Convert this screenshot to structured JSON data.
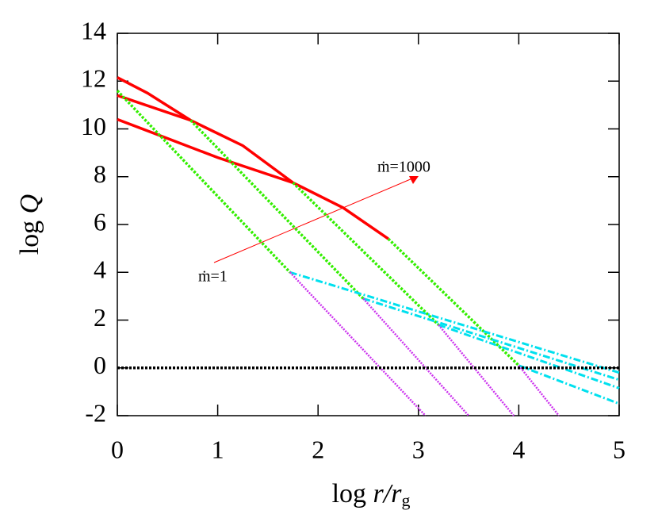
{
  "chart_data": {
    "type": "line",
    "x_label": [
      "log ",
      "r/r",
      "g"
    ],
    "y_label": [
      "log ",
      "Q"
    ],
    "annotations": [
      "ṁ=1",
      "ṁ=1000"
    ],
    "xlim": [
      0,
      5
    ],
    "ylim": [
      -2,
      14
    ],
    "xticks": [
      0,
      1,
      2,
      3,
      4,
      5
    ],
    "yticks": [
      -2,
      0,
      2,
      4,
      6,
      8,
      10,
      12,
      14
    ],
    "series": [
      {
        "color": "#ff0000",
        "style": "solid",
        "x": [
          0,
          0.3,
          0.73
        ],
        "values": [
          12.15,
          11.5,
          10.36
        ]
      },
      {
        "color": "#ff0000",
        "style": "solid",
        "x": [
          0,
          0.73,
          1.25,
          1.75,
          2.25,
          2.7
        ],
        "values": [
          11.4,
          10.36,
          9.3,
          7.75,
          6.7,
          5.4
        ]
      },
      {
        "color": "#ff0000",
        "style": "solid",
        "x": [
          0,
          0.5,
          1,
          1.5,
          1.75
        ],
        "values": [
          10.4,
          9.6,
          8.8,
          8.1,
          7.75
        ]
      },
      {
        "color": "#33ee00",
        "style": "dotted",
        "x": [
          0,
          1.72
        ],
        "values": [
          11.6,
          4.0
        ]
      },
      {
        "color": "#33ee00",
        "style": "dotted",
        "x": [
          0.73,
          2.45
        ],
        "values": [
          10.36,
          2.9
        ]
      },
      {
        "color": "#33ee00",
        "style": "dotted",
        "x": [
          1.75,
          3.2
        ],
        "values": [
          7.75,
          1.8
        ]
      },
      {
        "color": "#33ee00",
        "style": "dotted",
        "x": [
          2.7,
          4.0
        ],
        "values": [
          5.4,
          0.1
        ]
      },
      {
        "color": "#00e0ee",
        "style": "dashdot",
        "x": [
          1.72,
          5
        ],
        "values": [
          4.0,
          -0.2
        ]
      },
      {
        "color": "#00e0ee",
        "style": "dashdot",
        "x": [
          2.45,
          5
        ],
        "values": [
          2.9,
          -0.5
        ]
      },
      {
        "color": "#00e0ee",
        "style": "dashdot",
        "x": [
          3.2,
          5
        ],
        "values": [
          1.8,
          -0.85
        ]
      },
      {
        "color": "#00e0ee",
        "style": "dashdot",
        "x": [
          4.0,
          5
        ],
        "values": [
          0.1,
          -1.5
        ]
      },
      {
        "color": "#cc33ee",
        "style": "fine",
        "x": [
          1.72,
          3.07
        ],
        "values": [
          4.0,
          -2
        ]
      },
      {
        "color": "#cc33ee",
        "style": "fine",
        "x": [
          2.45,
          3.5
        ],
        "values": [
          2.9,
          -2
        ]
      },
      {
        "color": "#cc33ee",
        "style": "fine",
        "x": [
          3.2,
          3.95
        ],
        "values": [
          1.8,
          -2
        ]
      },
      {
        "color": "#cc33ee",
        "style": "fine",
        "x": [
          4.0,
          4.4
        ],
        "values": [
          0.1,
          -2
        ]
      },
      {
        "color": "#000000",
        "style": "dotted",
        "x": [
          0,
          5
        ],
        "values": [
          0,
          0
        ]
      }
    ]
  }
}
